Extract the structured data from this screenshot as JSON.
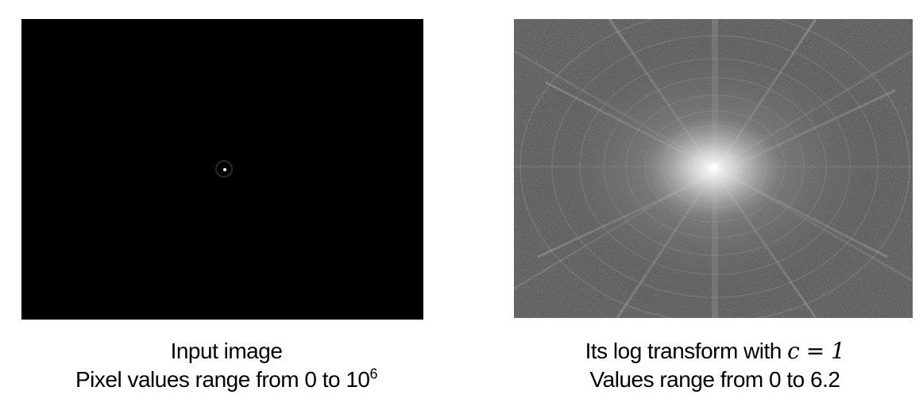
{
  "left": {
    "caption_line1": "Input image",
    "caption_line2_prefix": "Pixel values range from 0 to 10",
    "caption_line2_exponent": "6",
    "pixel_range": [
      0,
      1000000
    ]
  },
  "right": {
    "caption_line1_prefix": "Its log transform with ",
    "caption_line1_math": "c = 1",
    "caption_line2": "Values range from 0 to 6.2",
    "value_range": [
      0,
      6.2
    ]
  },
  "colors": {
    "background": "#ffffff",
    "left_image_bg": "#000000",
    "right_image_bg": "#4a4a4a",
    "text": "#000000"
  }
}
